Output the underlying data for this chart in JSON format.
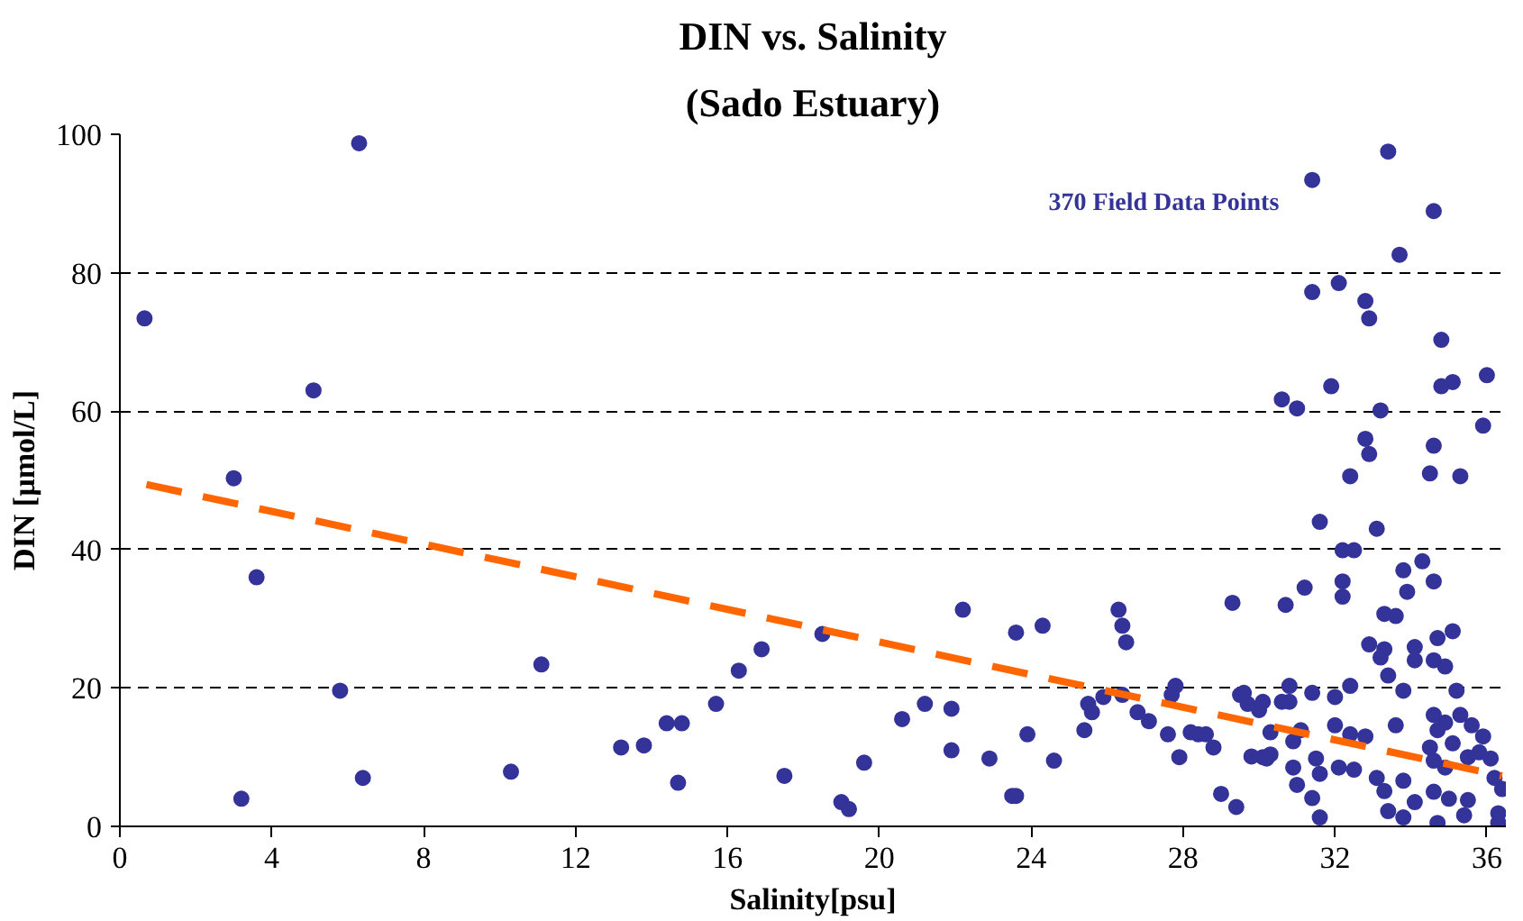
{
  "chart_data": {
    "type": "scatter",
    "title": "DIN vs. Salinity",
    "subtitle": "(Sado Estuary)",
    "xlabel": "Salinity[psu]",
    "ylabel": "DIN [µmol/L]",
    "annotations": [
      "370 Field Data Points"
    ],
    "xlim": [
      0,
      36.5
    ],
    "ylim": [
      0,
      100
    ],
    "xticks": [
      0,
      4,
      8,
      12,
      16,
      20,
      24,
      28,
      32,
      36
    ],
    "yticks": [
      0,
      20,
      40,
      60,
      80,
      100
    ],
    "grid": "y",
    "series": [
      {
        "color": "#333399",
        "marker": "circle",
        "x": [
          0.65,
          3.0,
          3.6,
          3.2,
          5.1,
          5.8,
          6.3,
          6.4,
          10.3,
          11.1,
          13.2,
          13.8,
          14.4,
          14.8,
          14.7,
          15.7,
          16.3,
          16.9,
          17.5,
          18.5,
          19.0,
          19.2,
          19.6,
          20.6,
          21.2,
          21.9,
          21.9,
          22.2,
          22.9,
          23.5,
          23.6,
          23.6,
          23.9,
          24.3,
          24.6,
          25.4,
          25.5,
          25.6,
          25.9,
          26.3,
          26.4,
          26.5,
          26.4,
          26.8,
          27.1,
          27.6,
          27.7,
          27.8,
          27.9,
          28.2,
          28.4,
          28.6,
          28.8,
          29.0,
          29.3,
          29.4,
          29.5,
          29.7,
          30.0,
          30.1,
          30.3,
          30.6,
          31.4,
          33.4,
          34.6,
          33.7,
          31.4,
          32.1,
          32.8,
          32.9,
          34.8,
          30.6,
          31.0,
          31.9,
          33.2,
          34.8,
          35.1,
          36.0,
          35.9,
          32.8,
          32.9,
          34.6,
          32.4,
          34.5,
          35.3,
          31.6,
          33.1,
          32.2,
          32.5,
          33.8,
          34.3,
          34.6,
          32.2,
          32.2,
          31.2,
          30.7,
          33.9,
          33.3,
          33.6,
          34.7,
          35.1,
          32.9,
          33.3,
          33.2,
          34.1,
          34.1,
          34.6,
          34.9,
          33.4,
          33.8,
          35.2,
          30.8,
          30.8,
          31.4,
          32.0,
          32.4,
          29.6,
          30.1,
          30.3,
          30.9,
          31.1,
          32.0,
          32.4,
          32.8,
          29.8,
          30.2,
          30.9,
          31.5,
          31.0,
          31.6,
          31.4,
          31.6,
          32.1,
          32.5,
          33.1,
          33.6,
          33.8,
          33.3,
          33.4,
          33.8,
          34.6,
          34.9,
          35.3,
          35.6,
          34.7,
          35.1,
          34.6,
          34.9,
          35.5,
          35.9,
          36.2,
          34.6,
          35.0,
          35.5,
          34.7,
          35.4,
          36.3,
          36.3,
          36.4,
          36.1,
          34.1,
          35.8,
          34.5
        ],
        "values": [
          73.4,
          50.3,
          36,
          4,
          63,
          19.6,
          98.7,
          7,
          7.9,
          23.4,
          11.4,
          11.7,
          14.9,
          14.9,
          6.3,
          17.7,
          22.5,
          25.6,
          7.3,
          27.8,
          3.5,
          2.5,
          9.2,
          15.5,
          17.7,
          17,
          11,
          31.3,
          9.8,
          4.4,
          4.4,
          28,
          13.3,
          29,
          9.5,
          13.9,
          17.7,
          16.5,
          18.7,
          31.3,
          29,
          26.6,
          19,
          16.5,
          15.2,
          13.3,
          19,
          20.3,
          10,
          13.6,
          13.3,
          13.3,
          11.4,
          4.7,
          32.3,
          2.8,
          19,
          17.7,
          16.8,
          10,
          10.4,
          18,
          93.4,
          97.5,
          88.9,
          82.6,
          77.2,
          78.5,
          75.9,
          73.4,
          70.3,
          61.7,
          60.4,
          63.6,
          60.1,
          63.6,
          64.2,
          65.2,
          57.9,
          56,
          53.8,
          55,
          50.6,
          51,
          50.6,
          44,
          43,
          39.9,
          39.9,
          37,
          38.3,
          35.4,
          35.4,
          33.2,
          34.5,
          32,
          33.9,
          30.7,
          30.4,
          27.2,
          28.2,
          26.3,
          25.6,
          24.4,
          25.9,
          24,
          24,
          23.1,
          21.8,
          19.6,
          19.6,
          20.3,
          18,
          19.3,
          18.7,
          20.3,
          19.3,
          18,
          13.6,
          12.3,
          13.9,
          14.6,
          13.3,
          13,
          10.1,
          9.8,
          8.5,
          9.8,
          6,
          7.6,
          4.1,
          1.3,
          8.5,
          8.2,
          7,
          14.6,
          6.6,
          5.1,
          2.2,
          1.3,
          16.1,
          15,
          16.1,
          14.6,
          13.9,
          12,
          9.5,
          8.5,
          10,
          13,
          7,
          5,
          4,
          3.8,
          0.5,
          1.6,
          1.9,
          0.5,
          5.4,
          9.8,
          3.5,
          10.7,
          11.4
        ]
      },
      {
        "type": "line",
        "color": "#ff6600",
        "line_style": "dashed",
        "marker": "none",
        "x": [
          0.7,
          36.4
        ],
        "values": [
          49.4,
          7.3
        ]
      }
    ]
  }
}
